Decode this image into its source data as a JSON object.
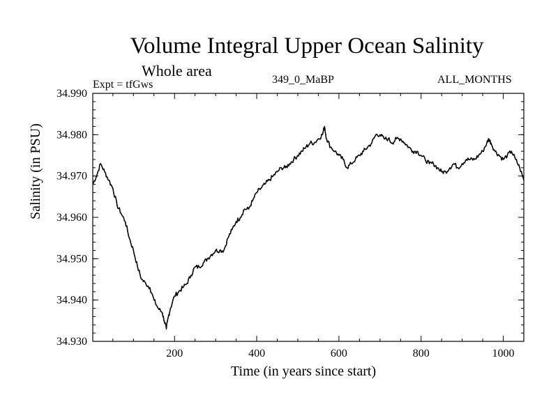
{
  "header": {
    "title": "Volume Integral Upper Ocean Salinity",
    "subtitle": "Whole area",
    "expt": "Expt = tfGws",
    "run": "349_0_MaBP",
    "months": "ALL_MONTHS"
  },
  "chart_data": {
    "type": "line",
    "title": "Volume Integral Upper Ocean Salinity",
    "xlabel": "Time (in years since start)",
    "ylabel": "Salinity (in PSU)",
    "xlim": [
      1,
      1050
    ],
    "ylim": [
      34.93,
      34.99
    ],
    "xticks": [
      200,
      400,
      600,
      800,
      1000
    ],
    "xtick_labels": [
      "200",
      "400",
      "600",
      "800",
      "1000"
    ],
    "yticks": [
      34.93,
      34.94,
      34.95,
      34.96,
      34.97,
      34.98,
      34.99
    ],
    "ytick_labels": [
      "34.930",
      "34.940",
      "34.950",
      "34.960",
      "34.970",
      "34.980",
      "34.990"
    ],
    "grid": false,
    "series": [
      {
        "name": "Salinity",
        "x": [
          1,
          10,
          20,
          30,
          40,
          50,
          60,
          70,
          80,
          90,
          100,
          110,
          120,
          130,
          140,
          150,
          160,
          170,
          175,
          180,
          185,
          190,
          200,
          210,
          220,
          230,
          240,
          250,
          260,
          270,
          280,
          290,
          300,
          310,
          320,
          330,
          340,
          350,
          360,
          370,
          380,
          390,
          400,
          410,
          420,
          430,
          440,
          450,
          460,
          470,
          480,
          490,
          500,
          510,
          520,
          530,
          540,
          550,
          560,
          565,
          570,
          580,
          590,
          600,
          610,
          620,
          630,
          640,
          650,
          660,
          670,
          680,
          690,
          700,
          710,
          720,
          730,
          740,
          750,
          760,
          770,
          780,
          790,
          800,
          810,
          820,
          830,
          840,
          850,
          860,
          870,
          880,
          890,
          900,
          910,
          920,
          930,
          940,
          950,
          960,
          965,
          970,
          980,
          990,
          1000,
          1010,
          1020,
          1030,
          1040,
          1050
        ],
        "y": [
          34.968,
          34.97,
          34.973,
          34.971,
          34.969,
          34.967,
          34.963,
          34.961,
          34.959,
          34.955,
          34.952,
          34.948,
          34.945,
          34.944,
          34.943,
          34.94,
          34.938,
          34.937,
          34.935,
          34.933,
          34.936,
          34.938,
          34.941,
          34.942,
          34.943,
          34.944,
          34.946,
          34.948,
          34.948,
          34.949,
          34.95,
          34.951,
          34.952,
          34.952,
          34.952,
          34.955,
          34.957,
          34.959,
          34.96,
          34.962,
          34.962,
          34.964,
          34.966,
          34.967,
          34.968,
          34.969,
          34.97,
          34.971,
          34.972,
          34.972,
          34.973,
          34.974,
          34.975,
          34.976,
          34.977,
          34.978,
          34.978,
          34.979,
          34.98,
          34.982,
          34.979,
          34.977,
          34.976,
          34.975,
          34.974,
          34.972,
          34.973,
          34.974,
          34.975,
          34.976,
          34.977,
          34.978,
          34.98,
          34.98,
          34.979,
          34.979,
          34.978,
          34.979,
          34.979,
          34.978,
          34.977,
          34.976,
          34.976,
          34.975,
          34.974,
          34.973,
          34.973,
          34.972,
          34.971,
          34.971,
          34.972,
          34.973,
          34.972,
          34.973,
          34.974,
          34.974,
          34.974,
          34.975,
          34.976,
          34.978,
          34.979,
          34.978,
          34.976,
          34.975,
          34.974,
          34.975,
          34.976,
          34.974,
          34.972,
          34.969
        ]
      }
    ]
  }
}
